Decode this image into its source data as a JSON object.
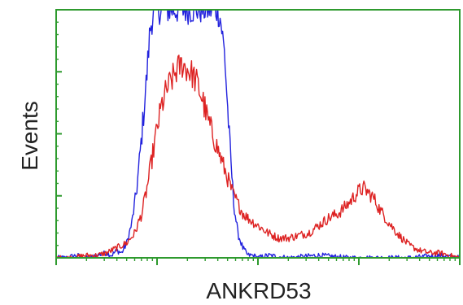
{
  "chart_data": {
    "type": "line",
    "xlabel": "ANKRD53",
    "ylabel": "Events",
    "x_scale": "log",
    "grid": false,
    "legend": "none",
    "xlim_decades": [
      0,
      4
    ],
    "ylim": [
      0,
      100
    ],
    "frame_color": "#2e9a2e",
    "series": [
      {
        "color": "#2222dd",
        "x": [
          0.0,
          0.1,
          0.2,
          0.3,
          0.35,
          0.4,
          0.5,
          0.55,
          0.6,
          0.65,
          0.7,
          0.75,
          0.8,
          0.85,
          0.9,
          0.93,
          0.97,
          1.0,
          1.05,
          1.12,
          1.2,
          1.3,
          1.4,
          1.5,
          1.55,
          1.6,
          1.63,
          1.67,
          1.7,
          1.73,
          1.76,
          1.8,
          1.85,
          1.9,
          1.95,
          2.0,
          2.1,
          2.3,
          2.6,
          2.9,
          3.2,
          3.5,
          3.8,
          4.0
        ],
        "y": [
          0,
          0,
          1,
          0,
          0,
          1,
          2,
          1,
          3,
          2,
          6,
          14,
          28,
          50,
          74,
          92,
          100,
          100,
          100,
          100,
          100,
          100,
          100,
          100,
          100,
          100,
          96,
          82,
          60,
          40,
          22,
          10,
          4,
          1,
          1,
          0,
          1,
          0,
          1,
          0,
          0,
          0,
          1,
          0
        ]
      },
      {
        "color": "#dd2222",
        "x": [
          0.0,
          0.15,
          0.3,
          0.4,
          0.5,
          0.6,
          0.7,
          0.78,
          0.85,
          0.9,
          0.95,
          1.0,
          1.05,
          1.1,
          1.15,
          1.2,
          1.25,
          1.3,
          1.35,
          1.4,
          1.45,
          1.5,
          1.55,
          1.6,
          1.65,
          1.7,
          1.75,
          1.8,
          1.85,
          1.9,
          2.0,
          2.1,
          2.2,
          2.3,
          2.4,
          2.5,
          2.6,
          2.7,
          2.8,
          2.9,
          3.0,
          3.05,
          3.1,
          3.15,
          3.2,
          3.3,
          3.4,
          3.5,
          3.6,
          3.7,
          3.8,
          3.9,
          4.0
        ],
        "y": [
          0,
          0,
          1,
          1,
          2,
          4,
          6,
          10,
          18,
          28,
          40,
          52,
          62,
          68,
          72,
          76,
          78,
          76,
          74,
          70,
          64,
          56,
          50,
          44,
          38,
          32,
          26,
          22,
          18,
          16,
          13,
          10,
          8,
          8,
          9,
          10,
          13,
          16,
          18,
          22,
          27,
          28,
          26,
          24,
          20,
          14,
          9,
          5,
          3,
          2,
          2,
          1,
          0
        ]
      }
    ]
  }
}
